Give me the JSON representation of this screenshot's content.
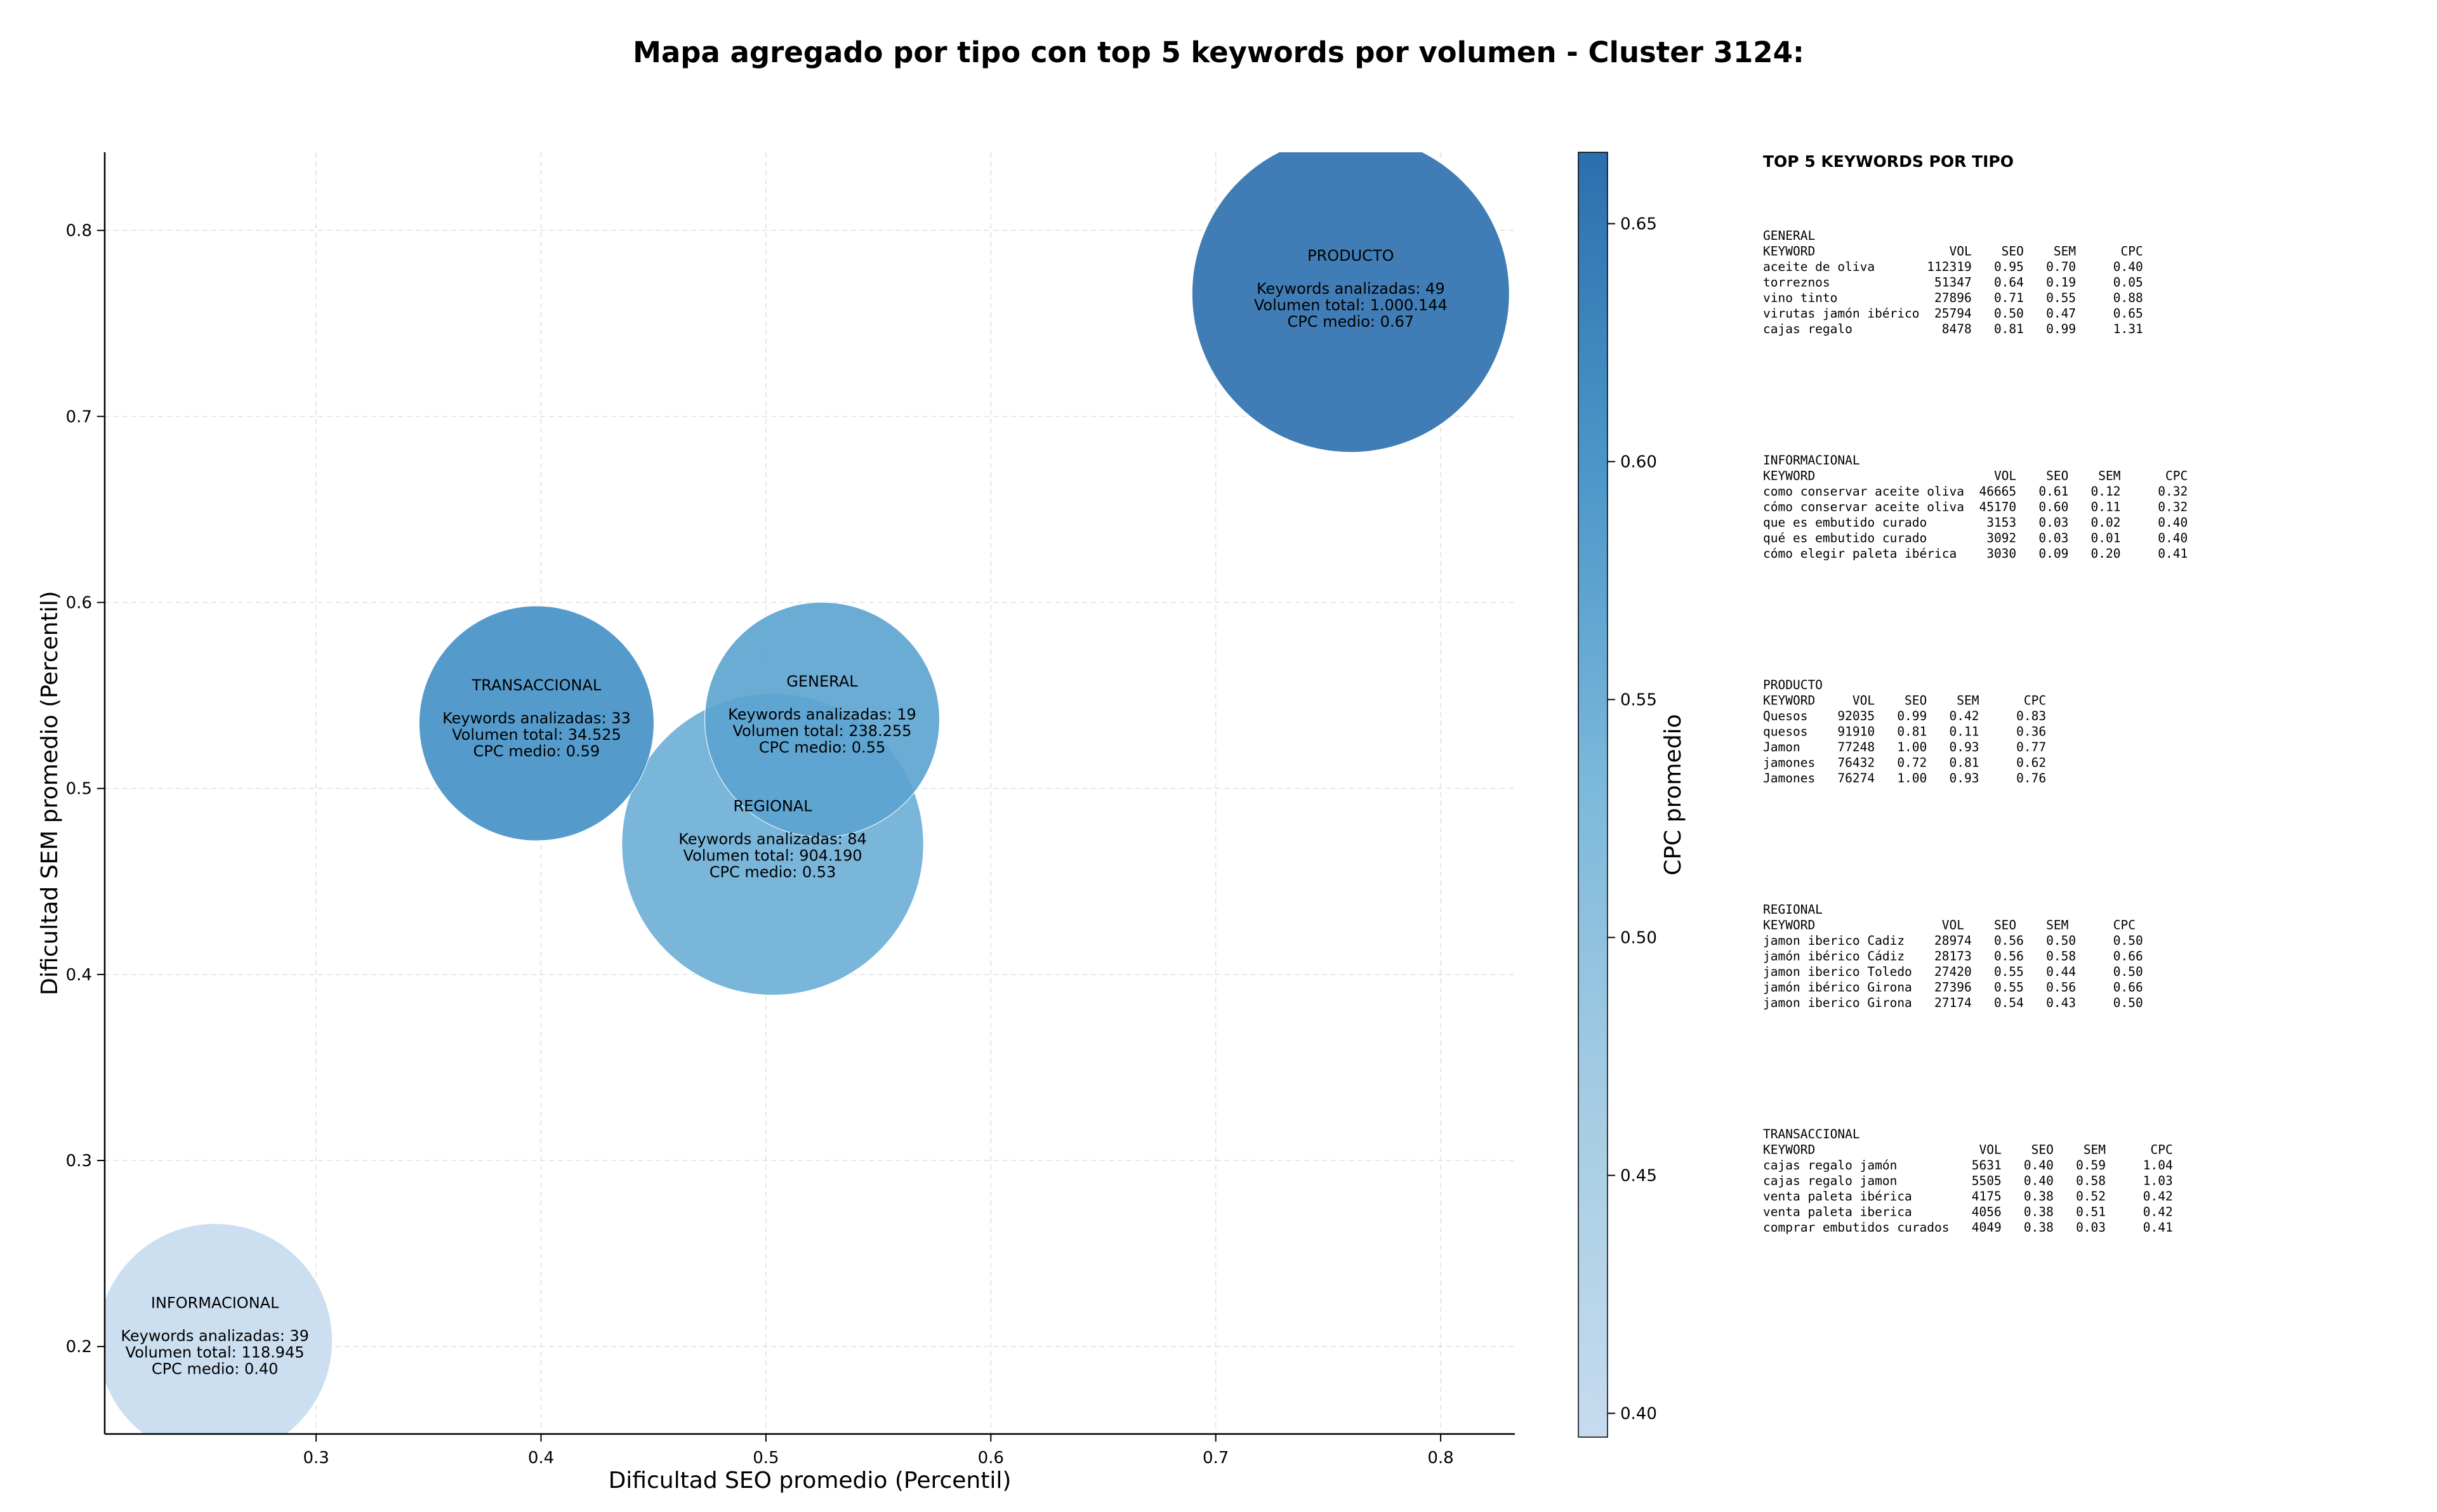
{
  "chart_data": {
    "type": "scatter",
    "title": "Mapa agregado por tipo con top 5 keywords por volumen - Cluster 3124:",
    "xlabel": "Dificultad SEO promedio (Percentil)",
    "ylabel": "Dificultad SEM promedio (Percentil)",
    "xlim": [
      0.206,
      0.833
    ],
    "ylim": [
      0.153,
      0.842
    ],
    "xticks": [
      0.3,
      0.4,
      0.5,
      0.6,
      0.7,
      0.8
    ],
    "yticks": [
      0.2,
      0.3,
      0.4,
      0.5,
      0.6,
      0.7,
      0.8
    ],
    "xtick_labels": [
      "0.3",
      "0.4",
      "0.5",
      "0.6",
      "0.7",
      "0.8"
    ],
    "ytick_labels": [
      "0.2",
      "0.3",
      "0.4",
      "0.5",
      "0.6",
      "0.7",
      "0.8"
    ],
    "grid": true,
    "bubble_size_metric": "volumen total",
    "colorbar": {
      "label": "CPC promedio",
      "range": [
        0.395,
        0.665
      ],
      "ticks": [
        0.4,
        0.45,
        0.5,
        0.55,
        0.6,
        0.65
      ],
      "tick_labels": [
        "0.40",
        "0.45",
        "0.50",
        "0.55",
        "0.60",
        "0.65"
      ],
      "colormap": "Blues"
    },
    "bubbles": [
      {
        "name": "PRODUCTO",
        "x": 0.76,
        "y": 0.766,
        "volume": 1000144,
        "cpc": 0.67,
        "color": "#2b6fae",
        "lines": [
          "Keywords analizadas: 49",
          "Volumen total: 1.000.144",
          "CPC medio: 0.67"
        ]
      },
      {
        "name": "TRANSACCIONAL",
        "x": 0.398,
        "y": 0.535,
        "volume": 34525,
        "cpc": 0.59,
        "color": "#4190c6",
        "lines": [
          "Keywords analizadas: 33",
          "Volumen total: 34.525",
          "CPC medio: 0.59"
        ]
      },
      {
        "name": "GENERAL",
        "x": 0.525,
        "y": 0.537,
        "volume": 238255,
        "cpc": 0.55,
        "color": "#5ba3d0",
        "lines": [
          "Keywords analizadas: 19",
          "Volumen total: 238.255",
          "CPC medio: 0.55"
        ]
      },
      {
        "name": "REGIONAL",
        "x": 0.503,
        "y": 0.47,
        "volume": 904190,
        "cpc": 0.53,
        "color": "#6aaed6",
        "lines": [
          "Keywords analizadas: 84",
          "Volumen total: 904.190",
          "CPC medio: 0.53"
        ]
      },
      {
        "name": "INFORMACIONAL",
        "x": 0.255,
        "y": 0.203,
        "volume": 118945,
        "cpc": 0.4,
        "color": "#c6dbef",
        "lines": [
          "Keywords analizadas: 39",
          "Volumen total: 118.945",
          "CPC medio: 0.40"
        ]
      }
    ],
    "keywords_panel": {
      "title": "TOP 5 KEYWORDS POR TIPO",
      "sections": [
        {
          "name": "GENERAL",
          "lines": [
            "KEYWORD                  VOL    SEO    SEM      CPC",
            "aceite de oliva       112319   0.95   0.70     0.40",
            "torreznos              51347   0.64   0.19     0.05",
            "vino tinto             27896   0.71   0.55     0.88",
            "virutas jamón ibérico  25794   0.50   0.47     0.65",
            "cajas regalo            8478   0.81   0.99     1.31"
          ]
        },
        {
          "name": "INFORMACIONAL",
          "lines": [
            "KEYWORD                        VOL    SEO    SEM      CPC",
            "como conservar aceite oliva  46665   0.61   0.12     0.32",
            "cómo conservar aceite oliva  45170   0.60   0.11     0.32",
            "que es embutido curado        3153   0.03   0.02     0.40",
            "qué es embutido curado        3092   0.03   0.01     0.40",
            "cómo elegir paleta ibérica    3030   0.09   0.20     0.41"
          ]
        },
        {
          "name": "PRODUCTO",
          "lines": [
            "KEYWORD     VOL    SEO    SEM      CPC",
            "Quesos    92035   0.99   0.42     0.83",
            "quesos    91910   0.81   0.11     0.36",
            "Jamon     77248   1.00   0.93     0.77",
            "jamones   76432   0.72   0.81     0.62",
            "Jamones   76274   1.00   0.93     0.76"
          ]
        },
        {
          "name": "REGIONAL",
          "lines": [
            "KEYWORD                 VOL    SEO    SEM      CPC",
            "jamon iberico Cadiz    28974   0.56   0.50     0.50",
            "jamón ibérico Cádiz    28173   0.56   0.58     0.66",
            "jamon iberico Toledo   27420   0.55   0.44     0.50",
            "jamón ibérico Girona   27396   0.55   0.56     0.66",
            "jamon iberico Girona   27174   0.54   0.43     0.50"
          ]
        },
        {
          "name": "TRANSACCIONAL",
          "lines": [
            "KEYWORD                      VOL    SEO    SEM      CPC",
            "cajas regalo jamón          5631   0.40   0.59     1.04",
            "cajas regalo jamon          5505   0.40   0.58     1.03",
            "venta paleta ibérica        4175   0.38   0.52     0.42",
            "venta paleta iberica        4056   0.38   0.51     0.42",
            "comprar embutidos curados   4049   0.38   0.03     0.41"
          ]
        }
      ]
    }
  }
}
